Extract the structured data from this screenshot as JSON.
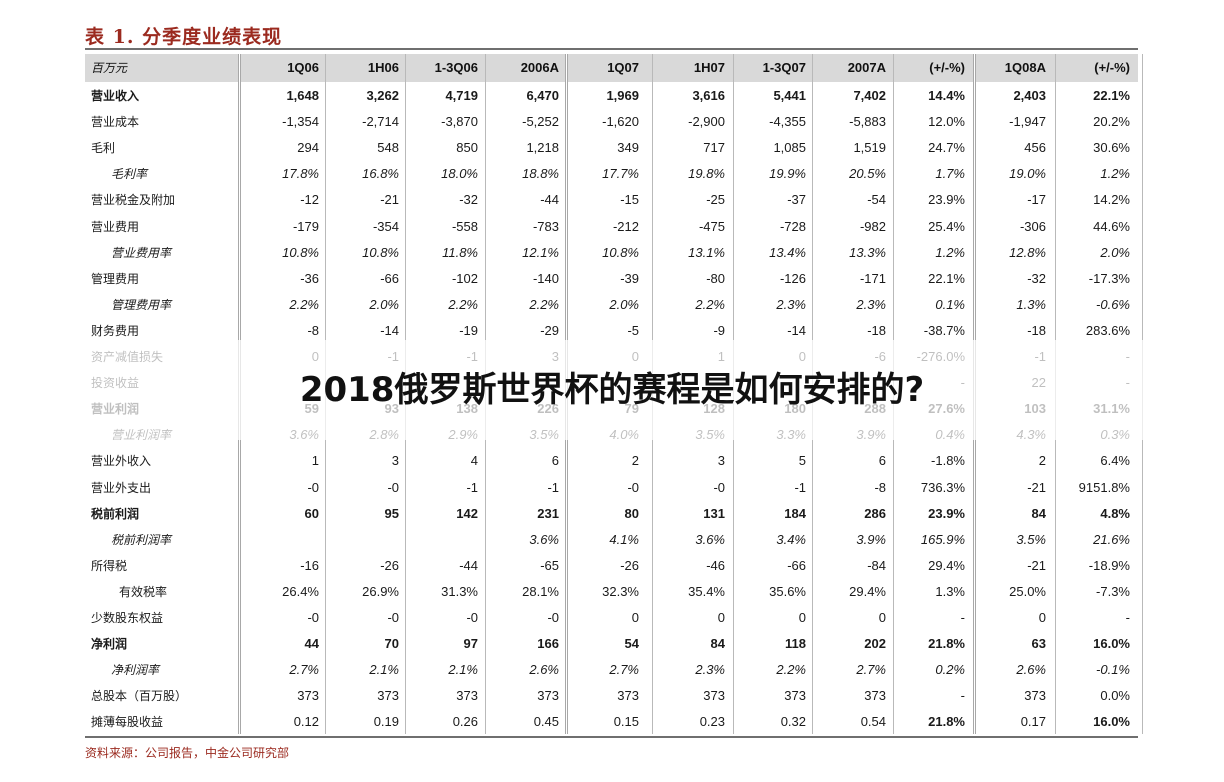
{
  "title": "表 1. 分季度业绩表现",
  "header": {
    "unit": "百万元",
    "columns": [
      "1Q06",
      "1H06",
      "1-3Q06",
      "2006A",
      "1Q07",
      "1H07",
      "1-3Q07",
      "2007A",
      "(+/-%)",
      "1Q08A",
      "(+/-%)"
    ]
  },
  "rows": [
    {
      "label": "营业收入",
      "style": "bold",
      "values": [
        "1,648",
        "3,262",
        "4,719",
        "6,470",
        "1,969",
        "3,616",
        "5,441",
        "7,402",
        "14.4%",
        "2,403",
        "22.1%"
      ]
    },
    {
      "label": "营业成本",
      "style": "",
      "values": [
        "-1,354",
        "-2,714",
        "-3,870",
        "-5,252",
        "-1,620",
        "-2,900",
        "-4,355",
        "-5,883",
        "12.0%",
        "-1,947",
        "20.2%"
      ]
    },
    {
      "label": "毛利",
      "style": "",
      "values": [
        "294",
        "548",
        "850",
        "1,218",
        "349",
        "717",
        "1,085",
        "1,519",
        "24.7%",
        "456",
        "30.6%"
      ]
    },
    {
      "label": "毛利率",
      "style": "italic",
      "values": [
        "17.8%",
        "16.8%",
        "18.0%",
        "18.8%",
        "17.7%",
        "19.8%",
        "19.9%",
        "20.5%",
        "1.7%",
        "19.0%",
        "1.2%"
      ]
    },
    {
      "label": "营业税金及附加",
      "style": "",
      "values": [
        "-12",
        "-21",
        "-32",
        "-44",
        "-15",
        "-25",
        "-37",
        "-54",
        "23.9%",
        "-17",
        "14.2%"
      ]
    },
    {
      "label": "营业费用",
      "style": "",
      "values": [
        "-179",
        "-354",
        "-558",
        "-783",
        "-212",
        "-475",
        "-728",
        "-982",
        "25.4%",
        "-306",
        "44.6%"
      ]
    },
    {
      "label": "营业费用率",
      "style": "italic",
      "values": [
        "10.8%",
        "10.8%",
        "11.8%",
        "12.1%",
        "10.8%",
        "13.1%",
        "13.4%",
        "13.3%",
        "1.2%",
        "12.8%",
        "2.0%"
      ]
    },
    {
      "label": "管理费用",
      "style": "",
      "values": [
        "-36",
        "-66",
        "-102",
        "-140",
        "-39",
        "-80",
        "-126",
        "-171",
        "22.1%",
        "-32",
        "-17.3%"
      ]
    },
    {
      "label": "管理费用率",
      "style": "italic",
      "values": [
        "2.2%",
        "2.0%",
        "2.2%",
        "2.2%",
        "2.0%",
        "2.2%",
        "2.3%",
        "2.3%",
        "0.1%",
        "1.3%",
        "-0.6%"
      ]
    },
    {
      "label": "财务费用",
      "style": "",
      "values": [
        "-8",
        "-14",
        "-19",
        "-29",
        "-5",
        "-9",
        "-14",
        "-18",
        "-38.7%",
        "-18",
        "283.6%"
      ]
    },
    {
      "label": "资产减值损失",
      "style": "",
      "values": [
        "0",
        "-1",
        "-1",
        "3",
        "0",
        "1",
        "0",
        "-6",
        "-276.0%",
        "-1",
        "-"
      ]
    },
    {
      "label": "投资收益",
      "style": "",
      "values": [
        "",
        "",
        "",
        "",
        "",
        "",
        "",
        "",
        "-",
        "22",
        "-"
      ]
    },
    {
      "label": "营业利润",
      "style": "bold",
      "values": [
        "59",
        "93",
        "138",
        "226",
        "79",
        "128",
        "180",
        "288",
        "27.6%",
        "103",
        "31.1%"
      ]
    },
    {
      "label": "营业利润率",
      "style": "italic",
      "values": [
        "3.6%",
        "2.8%",
        "2.9%",
        "3.5%",
        "4.0%",
        "3.5%",
        "3.3%",
        "3.9%",
        "0.4%",
        "4.3%",
        "0.3%"
      ]
    },
    {
      "label": "营业外收入",
      "style": "",
      "values": [
        "1",
        "3",
        "4",
        "6",
        "2",
        "3",
        "5",
        "6",
        "-1.8%",
        "2",
        "6.4%"
      ]
    },
    {
      "label": "营业外支出",
      "style": "",
      "values": [
        "-0",
        "-0",
        "-1",
        "-1",
        "-0",
        "-0",
        "-1",
        "-8",
        "736.3%",
        "-21",
        "9151.8%"
      ]
    },
    {
      "label": "税前利润",
      "style": "bold",
      "values": [
        "60",
        "95",
        "142",
        "231",
        "80",
        "131",
        "184",
        "286",
        "23.9%",
        "84",
        "4.8%"
      ]
    },
    {
      "label": "税前利润率",
      "style": "italic",
      "values": [
        "",
        "",
        "",
        "3.6%",
        "4.1%",
        "3.6%",
        "3.4%",
        "3.9%",
        "165.9%",
        "3.5%",
        "21.6%"
      ]
    },
    {
      "label": "所得税",
      "style": "",
      "values": [
        "-16",
        "-26",
        "-44",
        "-65",
        "-26",
        "-46",
        "-66",
        "-84",
        "29.4%",
        "-21",
        "-18.9%"
      ]
    },
    {
      "label": "有效税率",
      "style": "indent",
      "values": [
        "26.4%",
        "26.9%",
        "31.3%",
        "28.1%",
        "32.3%",
        "35.4%",
        "35.6%",
        "29.4%",
        "1.3%",
        "25.0%",
        "-7.3%"
      ]
    },
    {
      "label": "少数股东权益",
      "style": "",
      "values": [
        "-0",
        "-0",
        "-0",
        "-0",
        "0",
        "0",
        "0",
        "0",
        "-",
        "0",
        "-"
      ]
    },
    {
      "label": "净利润",
      "style": "bold",
      "values": [
        "44",
        "70",
        "97",
        "166",
        "54",
        "84",
        "118",
        "202",
        "21.8%",
        "63",
        "16.0%"
      ]
    },
    {
      "label": "净利润率",
      "style": "italic",
      "values": [
        "2.7%",
        "2.1%",
        "2.1%",
        "2.6%",
        "2.7%",
        "2.3%",
        "2.2%",
        "2.7%",
        "0.2%",
        "2.6%",
        "-0.1%"
      ]
    },
    {
      "label": "总股本（百万股）",
      "style": "",
      "values": [
        "373",
        "373",
        "373",
        "373",
        "373",
        "373",
        "373",
        "373",
        "-",
        "373",
        "0.0%"
      ]
    },
    {
      "label": "摊薄每股收益",
      "style": "",
      "values": [
        "0.12",
        "0.19",
        "0.26",
        "0.45",
        "0.15",
        "0.23",
        "0.32",
        "0.54",
        "21.8%",
        "0.17",
        "16.0%"
      ]
    }
  ],
  "bold_cells": {
    "row": "摊薄每股收益",
    "indices": [
      8,
      10
    ]
  },
  "source": "资料来源：公司报告，中金公司研究部",
  "overlay_title": "2018俄罗斯世界杯的赛程是如何安排的?",
  "colors": {
    "title": "#9b2a1f",
    "header_bg": "#d9d9d9",
    "rule": "#6f6f6f"
  }
}
